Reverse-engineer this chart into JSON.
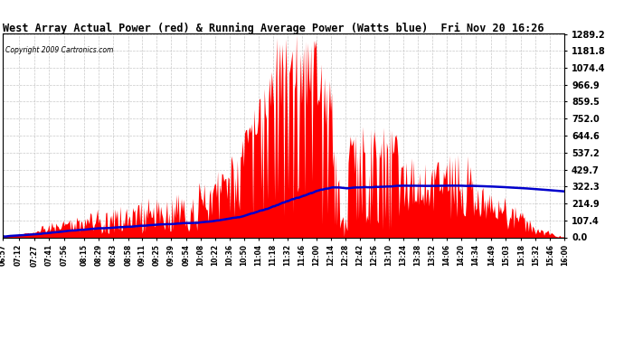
{
  "title": "West Array Actual Power (red) & Running Average Power (Watts blue)  Fri Nov 20 16:26",
  "copyright": "Copyright 2009 Cartronics.com",
  "background_color": "#ffffff",
  "plot_bg_color": "#ffffff",
  "grid_color": "#bbbbbb",
  "bar_color": "#ff0000",
  "line_color": "#0000cc",
  "yticks": [
    0.0,
    107.4,
    214.9,
    322.3,
    429.7,
    537.2,
    644.6,
    752.0,
    859.5,
    966.9,
    1074.4,
    1181.8,
    1289.2
  ],
  "ytick_labels": [
    "0.0",
    "107.4",
    "214.9",
    "322.3",
    "429.7",
    "537.2",
    "644.6",
    "752.0",
    "859.5",
    "966.9",
    "1074.4",
    "1181.8",
    "1289.2"
  ],
  "ymax": 1289.2,
  "ymin": 0.0,
  "xtick_labels": [
    "06:57",
    "07:12",
    "07:27",
    "07:41",
    "07:56",
    "08:15",
    "08:29",
    "08:43",
    "08:58",
    "09:11",
    "09:25",
    "09:39",
    "09:54",
    "10:08",
    "10:22",
    "10:36",
    "10:50",
    "11:04",
    "11:18",
    "11:32",
    "11:46",
    "12:00",
    "12:14",
    "12:28",
    "12:42",
    "12:56",
    "13:10",
    "13:24",
    "13:38",
    "13:52",
    "14:06",
    "14:20",
    "14:34",
    "14:49",
    "15:03",
    "15:18",
    "15:32",
    "15:46",
    "16:00"
  ]
}
